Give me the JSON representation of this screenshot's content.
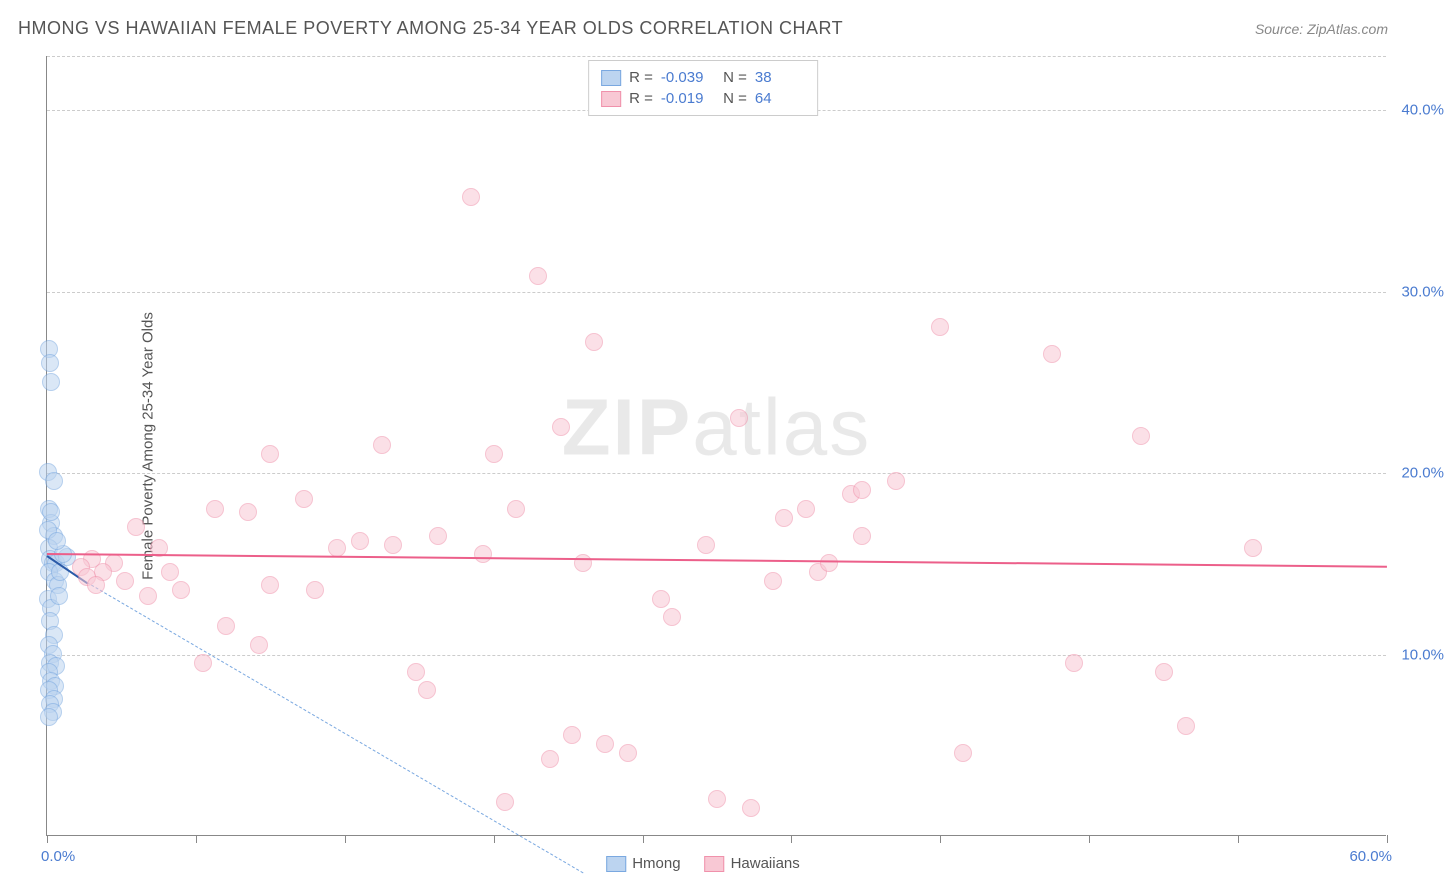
{
  "title": "HMONG VS HAWAIIAN FEMALE POVERTY AMONG 25-34 YEAR OLDS CORRELATION CHART",
  "source": "Source: ZipAtlas.com",
  "watermark": "ZIPatlas",
  "y_axis_title": "Female Poverty Among 25-34 Year Olds",
  "chart": {
    "type": "scatter",
    "xlim": [
      0,
      60
    ],
    "ylim": [
      0,
      43
    ],
    "x_ticks": [
      0,
      6.67,
      13.33,
      20,
      26.67,
      33.33,
      40,
      46.67,
      53.33,
      60
    ],
    "x_tick_labels": {
      "0": "0.0%",
      "60": "60.0%"
    },
    "y_grid": [
      10,
      20,
      30,
      40
    ],
    "y_tick_labels": {
      "10": "10.0%",
      "20": "20.0%",
      "30": "30.0%",
      "40": "40.0%"
    },
    "grid_color": "#cccccc",
    "axis_color": "#888888",
    "tick_label_color": "#4a7bd0",
    "background_color": "#ffffff",
    "point_radius": 9,
    "point_stroke_width": 1.5,
    "series": [
      {
        "name": "Hmong",
        "fill": "#bcd4f0",
        "stroke": "#7aa8e0",
        "fill_opacity": 0.55,
        "R": "-0.039",
        "N": "38",
        "trend": {
          "x1": 0,
          "y1": 15.5,
          "x2": 1.8,
          "y2": 14.0,
          "color": "#2a5aa8",
          "width": 2.5,
          "dash": false
        },
        "extrapolation": {
          "x1": 1.8,
          "y1": 14.0,
          "x2": 24,
          "y2": -2,
          "color": "#7aa8e0",
          "width": 1.5,
          "dash": true
        },
        "points": [
          [
            0.1,
            26.8
          ],
          [
            0.12,
            26.0
          ],
          [
            0.2,
            25.0
          ],
          [
            0.05,
            20.0
          ],
          [
            0.3,
            19.5
          ],
          [
            0.1,
            18.0
          ],
          [
            0.2,
            17.2
          ],
          [
            0.3,
            16.5
          ],
          [
            0.08,
            15.8
          ],
          [
            0.15,
            15.2
          ],
          [
            0.25,
            15.0
          ],
          [
            0.4,
            15.0
          ],
          [
            0.9,
            15.3
          ],
          [
            0.1,
            14.5
          ],
          [
            0.35,
            14.0
          ],
          [
            0.5,
            13.8
          ],
          [
            0.05,
            13.0
          ],
          [
            0.2,
            12.5
          ],
          [
            0.12,
            11.8
          ],
          [
            0.3,
            11.0
          ],
          [
            0.1,
            10.5
          ],
          [
            0.25,
            10.0
          ],
          [
            0.15,
            9.5
          ],
          [
            0.4,
            9.3
          ],
          [
            0.08,
            9.0
          ],
          [
            0.2,
            8.5
          ],
          [
            0.35,
            8.2
          ],
          [
            0.1,
            8.0
          ],
          [
            0.3,
            7.5
          ],
          [
            0.15,
            7.2
          ],
          [
            0.25,
            6.8
          ],
          [
            0.1,
            6.5
          ],
          [
            0.05,
            16.8
          ],
          [
            0.18,
            17.8
          ],
          [
            0.6,
            14.5
          ],
          [
            0.7,
            15.5
          ],
          [
            0.45,
            16.2
          ],
          [
            0.55,
            13.2
          ]
        ]
      },
      {
        "name": "Hawaiians",
        "fill": "#f8c8d4",
        "stroke": "#f091ab",
        "fill_opacity": 0.55,
        "R": "-0.019",
        "N": "64",
        "trend": {
          "x1": 0,
          "y1": 15.6,
          "x2": 60,
          "y2": 14.9,
          "color": "#ec5f8a",
          "width": 2.5,
          "dash": false
        },
        "points": [
          [
            19,
            35.2
          ],
          [
            22,
            30.8
          ],
          [
            24.5,
            27.2
          ],
          [
            31,
            23.0
          ],
          [
            40,
            28.0
          ],
          [
            45,
            26.5
          ],
          [
            49,
            22.0
          ],
          [
            36,
            18.8
          ],
          [
            36.5,
            19.0
          ],
          [
            38,
            19.5
          ],
          [
            33,
            17.5
          ],
          [
            34,
            18.0
          ],
          [
            23,
            22.5
          ],
          [
            20,
            21.0
          ],
          [
            21,
            18.0
          ],
          [
            15,
            21.5
          ],
          [
            10,
            21.0
          ],
          [
            11.5,
            18.5
          ],
          [
            7.5,
            18.0
          ],
          [
            9,
            17.8
          ],
          [
            4,
            17.0
          ],
          [
            5,
            15.8
          ],
          [
            3,
            15.0
          ],
          [
            2,
            15.2
          ],
          [
            2.5,
            14.5
          ],
          [
            1.5,
            14.8
          ],
          [
            1.8,
            14.2
          ],
          [
            3.5,
            14.0
          ],
          [
            5.5,
            14.5
          ],
          [
            6,
            13.5
          ],
          [
            4.5,
            13.2
          ],
          [
            2.2,
            13.8
          ],
          [
            8,
            11.5
          ],
          [
            9.5,
            10.5
          ],
          [
            7,
            9.5
          ],
          [
            10,
            13.8
          ],
          [
            12,
            13.5
          ],
          [
            13,
            15.8
          ],
          [
            14,
            16.2
          ],
          [
            15.5,
            16.0
          ],
          [
            16.5,
            9.0
          ],
          [
            17,
            8.0
          ],
          [
            19.5,
            15.5
          ],
          [
            23.5,
            5.5
          ],
          [
            25,
            5.0
          ],
          [
            26,
            4.5
          ],
          [
            27.5,
            13.0
          ],
          [
            28,
            12.0
          ],
          [
            30,
            2.0
          ],
          [
            31.5,
            1.5
          ],
          [
            32.5,
            14.0
          ],
          [
            34.5,
            14.5
          ],
          [
            35,
            15.0
          ],
          [
            36.5,
            16.5
          ],
          [
            41,
            4.5
          ],
          [
            46,
            9.5
          ],
          [
            50,
            9.0
          ],
          [
            51,
            6.0
          ],
          [
            54,
            15.8
          ],
          [
            20.5,
            1.8
          ],
          [
            22.5,
            4.2
          ],
          [
            24,
            15.0
          ],
          [
            17.5,
            16.5
          ],
          [
            29.5,
            16.0
          ]
        ]
      }
    ]
  },
  "legend_bottom": [
    {
      "label": "Hmong",
      "fill": "#bcd4f0",
      "stroke": "#7aa8e0"
    },
    {
      "label": "Hawaiians",
      "fill": "#f8c8d4",
      "stroke": "#f091ab"
    }
  ]
}
